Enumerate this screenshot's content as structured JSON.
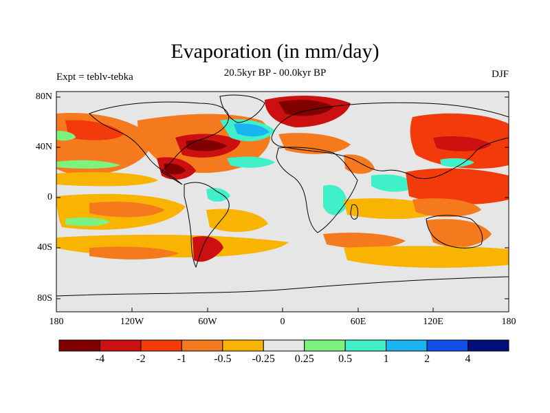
{
  "title": "Evaporation (in mm/day)",
  "subtitle": "20.5kyr BP - 00.0kyr BP",
  "expt_label": "Expt = teblv-tebka",
  "season_label": "DJF",
  "map": {
    "lat_ticks": [
      "80N",
      "40N",
      "0",
      "40S",
      "80S"
    ],
    "lon_ticks": [
      "180",
      "120W",
      "60W",
      "0",
      "60E",
      "120E",
      "180"
    ],
    "background_color": "#e6e6e6"
  },
  "colorbar": {
    "colors": [
      "#800000",
      "#cc1010",
      "#f23a0a",
      "#f57a1e",
      "#f8b400",
      "#e6e6e6",
      "#7ef27e",
      "#40f0c8",
      "#1ab4f0",
      "#1050e8",
      "#00107a"
    ],
    "labels": [
      "-4",
      "-2",
      "-1",
      "-0.5",
      "-0.25",
      "0.25",
      "0.5",
      "1",
      "2",
      "4"
    ]
  },
  "colors": {
    "land_line": "#000000",
    "frame": "#000000"
  }
}
